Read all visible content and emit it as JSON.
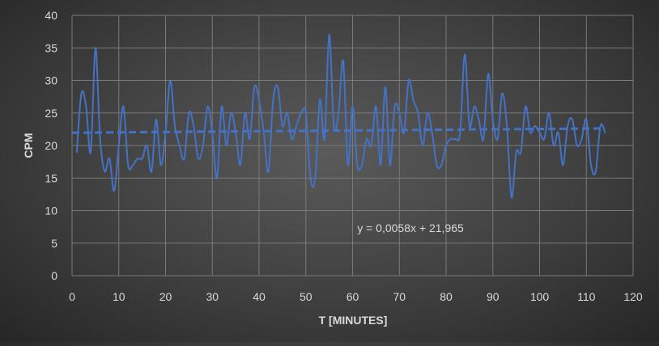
{
  "chart_data": {
    "type": "line",
    "title": "",
    "xlabel": "T [MINUTES]",
    "ylabel": "CPM",
    "xlim": [
      0,
      120
    ],
    "ylim": [
      0,
      40
    ],
    "x_ticks": [
      "0",
      "10",
      "20",
      "30",
      "40",
      "50",
      "60",
      "70",
      "80",
      "90",
      "100",
      "110",
      "120"
    ],
    "y_ticks": [
      "0",
      "5",
      "10",
      "15",
      "20",
      "25",
      "30",
      "35",
      "40"
    ],
    "grid": true,
    "legend": "none",
    "line_color": "#4472c4",
    "series": [
      {
        "x": [
          1,
          2,
          3,
          4,
          5,
          6,
          7,
          8,
          9,
          10,
          11,
          12,
          13,
          14,
          15,
          16,
          17,
          18,
          19,
          20,
          21,
          22,
          23,
          24,
          25,
          26,
          27,
          28,
          29,
          30,
          31,
          32,
          33,
          34,
          35,
          36,
          37,
          38,
          39,
          40,
          41,
          42,
          43,
          44,
          45,
          46,
          47,
          48,
          49,
          50,
          51,
          52,
          53,
          54,
          55,
          56,
          57,
          58,
          59,
          60,
          61,
          62,
          63,
          64,
          65,
          66,
          67,
          68,
          69,
          70,
          71,
          72,
          73,
          74,
          75,
          76,
          77,
          78,
          79,
          80,
          81,
          82,
          83,
          84,
          85,
          86,
          87,
          88,
          89,
          90,
          91,
          92,
          93,
          94,
          95,
          96,
          97,
          98,
          99,
          100,
          101,
          102,
          103,
          104,
          105,
          106,
          107,
          108,
          109,
          110,
          111,
          112,
          113,
          114
        ],
        "values": [
          19,
          28,
          26,
          19,
          35,
          21,
          16,
          18,
          13,
          20,
          26,
          17,
          17,
          18,
          18,
          20,
          16,
          24,
          17,
          22,
          30,
          23,
          20,
          18,
          25,
          23,
          18,
          20,
          26,
          22,
          15,
          26,
          20,
          25,
          22,
          17,
          25,
          21,
          29,
          27,
          22,
          16,
          27,
          29,
          23,
          25,
          21,
          23,
          25,
          25,
          15,
          15,
          27,
          21,
          37,
          23,
          25,
          33,
          17,
          26,
          17,
          17,
          21,
          20,
          26,
          17,
          29,
          17,
          26,
          25,
          22,
          30,
          27,
          25,
          20,
          25,
          22,
          17,
          17,
          20,
          21,
          21,
          22,
          34,
          23,
          26,
          24,
          21,
          31,
          24,
          21,
          28,
          23,
          12,
          19,
          19,
          26,
          22,
          23,
          22,
          21,
          25,
          20,
          22,
          17,
          23,
          24,
          20,
          21,
          24,
          17,
          16,
          23,
          22
        ]
      }
    ],
    "trendline": {
      "type": "linear",
      "slope": 0.0058,
      "intercept": 21.965,
      "x_range": [
        0,
        114
      ],
      "equation_label": "y = 0,0058x + 21,965"
    }
  }
}
